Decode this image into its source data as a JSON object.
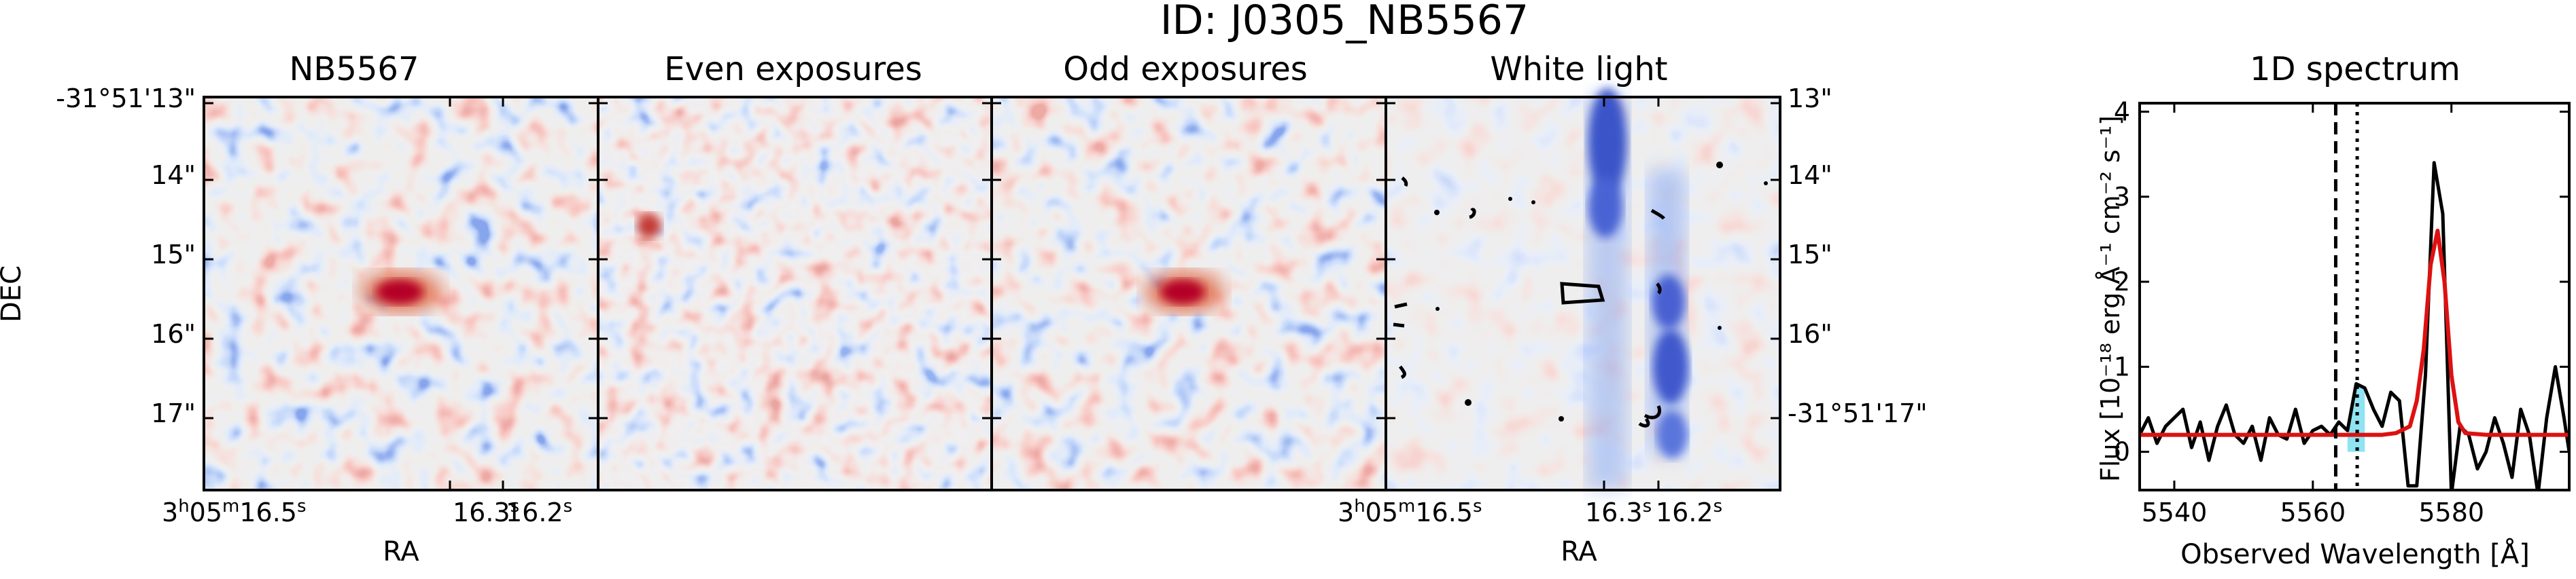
{
  "figure_title": "ID: J0305_NB5567",
  "panels": [
    {
      "title": "NB5567"
    },
    {
      "title": "Even exposures"
    },
    {
      "title": "Odd exposures"
    },
    {
      "title": "White light"
    }
  ],
  "image_axes": {
    "ylabel": "DEC",
    "xlabel": "RA",
    "left_dec_ticks": [
      "-31°51'13\"",
      "14\"",
      "15\"",
      "16\"",
      "17\""
    ],
    "right_dec_ticks": [
      "13\"",
      "14\"",
      "15\"",
      "16\"",
      "-31°51'17\""
    ],
    "ra_ticks_panel1": {
      "main": [
        "3",
        "05",
        "16.5"
      ],
      "mid": [
        "16.3",
        "16.2"
      ],
      "units": [
        "h",
        "m",
        "s"
      ]
    },
    "ra_ticks_panel4": {
      "main": [
        "3",
        "05",
        "16.5"
      ],
      "mid": [
        "16.3",
        "16.2"
      ],
      "units": [
        "h",
        "m",
        "s"
      ]
    },
    "colormap": "coolwarm",
    "contour_color": "#000000"
  },
  "chart_data": [
    {
      "type": "line",
      "title": "1D spectrum",
      "xlabel": "Observed Wavelength [Å]",
      "ylabel": "Flux [10⁻¹⁸ erg Å⁻¹ cm⁻² s⁻¹]",
      "xlim": [
        5535,
        5597
      ],
      "ylim": [
        -0.45,
        4.1
      ],
      "xticks": [
        5540,
        5560,
        5580
      ],
      "yticks": [
        0,
        1,
        2,
        3,
        4
      ],
      "series": [
        {
          "color": "#000000",
          "x": [
            5535,
            5536.25,
            5537.5,
            5538.75,
            5540,
            5541.25,
            5542.5,
            5543.75,
            5545,
            5546.25,
            5547.5,
            5548.75,
            5550,
            5551.25,
            5552.5,
            5553.75,
            5555,
            5556.25,
            5557.5,
            5558.75,
            5560,
            5561.25,
            5562.5,
            5563.75,
            5565,
            5566.25,
            5567.5,
            5568.75,
            5570,
            5571.25,
            5572.5,
            5573.75,
            5575,
            5576.25,
            5577.5,
            5578.75,
            5580,
            5581.25,
            5582.5,
            5583.75,
            5585,
            5586.25,
            5587.5,
            5588.75,
            5590,
            5591.25,
            5592.5,
            5593.75,
            5595,
            5596.25,
            5597
          ],
          "y": [
            0.2,
            0.4,
            0.1,
            0.3,
            0.4,
            0.5,
            0.05,
            0.35,
            -0.1,
            0.3,
            0.55,
            0.2,
            0.1,
            0.3,
            -0.1,
            0.4,
            0.2,
            0.15,
            0.5,
            0.1,
            0.25,
            0.3,
            0.2,
            0.35,
            0.25,
            0.8,
            0.75,
            0.5,
            0.3,
            0.7,
            0.6,
            -0.4,
            -0.4,
            0.9,
            3.4,
            2.8,
            -0.5,
            0.3,
            0.2,
            -0.2,
            0.0,
            0.4,
            0.1,
            -0.3,
            0.5,
            0.2,
            -0.5,
            0.4,
            1.0,
            0.4,
            0.0
          ]
        },
        {
          "color": "#dd1111",
          "x": [
            5535,
            5540,
            5545,
            5550,
            5555,
            5560,
            5565,
            5570,
            5572,
            5574,
            5575,
            5576,
            5577,
            5578,
            5579,
            5580,
            5581,
            5582,
            5585,
            5590,
            5595,
            5597
          ],
          "y": [
            0.2,
            0.2,
            0.2,
            0.2,
            0.2,
            0.2,
            0.2,
            0.2,
            0.22,
            0.3,
            0.6,
            1.2,
            2.2,
            2.6,
            2.0,
            0.9,
            0.35,
            0.22,
            0.2,
            0.2,
            0.2,
            0.2
          ]
        }
      ],
      "vlines": [
        {
          "x": 5563.3,
          "style": "dashed"
        },
        {
          "x": 5566.4,
          "style": "dotted"
        }
      ],
      "shaded_region": {
        "x": [
          5565,
          5566.25,
          5567.5
        ],
        "y": [
          0.25,
          0.8,
          0.75
        ],
        "color": "#8fe3f3"
      }
    }
  ]
}
